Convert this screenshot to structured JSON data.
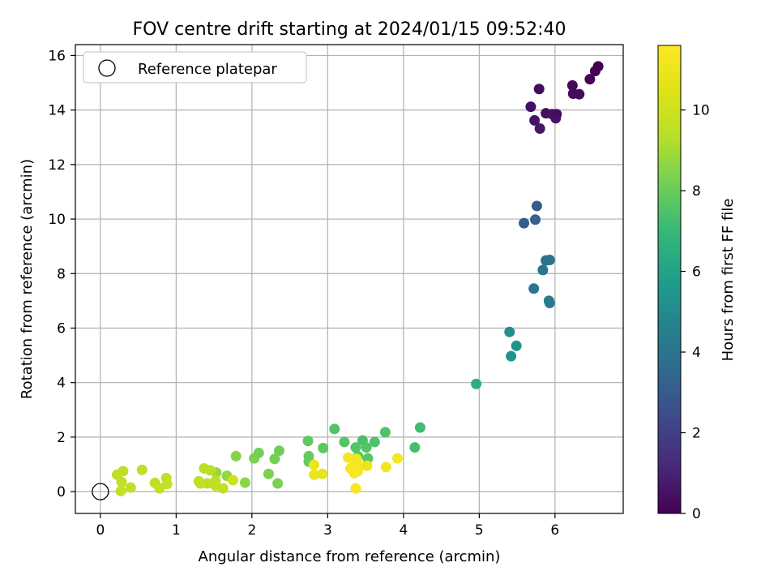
{
  "chart_data": {
    "type": "scatter",
    "title": "FOV centre drift starting at 2024/01/15 09:52:40",
    "xlabel": "Angular distance from reference (arcmin)",
    "ylabel": "Rotation from reference (arcmin)",
    "xlim": [
      -0.33,
      6.9
    ],
    "ylim": [
      -0.8,
      16.4
    ],
    "x_ticks": [
      0,
      1,
      2,
      3,
      4,
      5,
      6
    ],
    "y_ticks": [
      0,
      2,
      4,
      6,
      8,
      10,
      12,
      14,
      16
    ],
    "grid": true,
    "legend": {
      "placement": "top-left",
      "entries": [
        "Reference platepar"
      ]
    },
    "reference": {
      "name": "Reference platepar",
      "x": 0,
      "y": 0,
      "marker": "open-circle"
    },
    "colorbar": {
      "label": "Hours from first FF file",
      "colormap": "viridis",
      "min": 0,
      "max": 11.6,
      "ticks": [
        0,
        2,
        4,
        6,
        8,
        10
      ]
    },
    "points": [
      {
        "x": 5.79,
        "y": 14.77,
        "c": 0.3
      },
      {
        "x": 5.68,
        "y": 14.12,
        "c": 0.4
      },
      {
        "x": 5.73,
        "y": 13.62,
        "c": 0.5
      },
      {
        "x": 5.8,
        "y": 13.32,
        "c": 0.6
      },
      {
        "x": 5.88,
        "y": 13.88,
        "c": 0.4
      },
      {
        "x": 5.96,
        "y": 13.85,
        "c": 0.5
      },
      {
        "x": 6.01,
        "y": 13.7,
        "c": 0.6
      },
      {
        "x": 6.02,
        "y": 13.85,
        "c": 0.4
      },
      {
        "x": 6.23,
        "y": 14.9,
        "c": 0.2
      },
      {
        "x": 6.24,
        "y": 14.6,
        "c": 0.3
      },
      {
        "x": 6.32,
        "y": 14.58,
        "c": 0.3
      },
      {
        "x": 6.46,
        "y": 15.13,
        "c": 0.1
      },
      {
        "x": 6.53,
        "y": 15.43,
        "c": 0.1
      },
      {
        "x": 6.57,
        "y": 15.6,
        "c": 0.0
      },
      {
        "x": 5.76,
        "y": 10.48,
        "c": 3.0
      },
      {
        "x": 5.59,
        "y": 9.85,
        "c": 3.1
      },
      {
        "x": 5.74,
        "y": 9.98,
        "c": 3.2
      },
      {
        "x": 5.88,
        "y": 8.48,
        "c": 3.8
      },
      {
        "x": 5.93,
        "y": 8.5,
        "c": 3.9
      },
      {
        "x": 5.84,
        "y": 8.13,
        "c": 4.0
      },
      {
        "x": 5.72,
        "y": 7.45,
        "c": 4.1
      },
      {
        "x": 5.92,
        "y": 7.0,
        "c": 4.3
      },
      {
        "x": 5.93,
        "y": 6.92,
        "c": 4.3
      },
      {
        "x": 5.4,
        "y": 5.86,
        "c": 5.2
      },
      {
        "x": 5.49,
        "y": 5.35,
        "c": 5.3
      },
      {
        "x": 5.42,
        "y": 4.97,
        "c": 5.4
      },
      {
        "x": 4.96,
        "y": 3.95,
        "c": 6.6
      },
      {
        "x": 4.22,
        "y": 2.35,
        "c": 7.2
      },
      {
        "x": 4.15,
        "y": 1.62,
        "c": 7.3
      },
      {
        "x": 3.76,
        "y": 2.18,
        "c": 7.5
      },
      {
        "x": 3.62,
        "y": 1.82,
        "c": 7.5
      },
      {
        "x": 3.46,
        "y": 1.88,
        "c": 7.4
      },
      {
        "x": 3.51,
        "y": 1.62,
        "c": 7.6
      },
      {
        "x": 3.37,
        "y": 1.62,
        "c": 7.6
      },
      {
        "x": 3.53,
        "y": 1.22,
        "c": 7.7
      },
      {
        "x": 3.4,
        "y": 1.3,
        "c": 7.7
      },
      {
        "x": 3.22,
        "y": 1.82,
        "c": 7.6
      },
      {
        "x": 3.09,
        "y": 2.3,
        "c": 7.6
      },
      {
        "x": 2.94,
        "y": 1.6,
        "c": 7.8
      },
      {
        "x": 2.74,
        "y": 1.86,
        "c": 7.8
      },
      {
        "x": 2.75,
        "y": 1.3,
        "c": 7.9
      },
      {
        "x": 2.75,
        "y": 1.1,
        "c": 7.9
      },
      {
        "x": 2.36,
        "y": 1.5,
        "c": 8.1
      },
      {
        "x": 2.3,
        "y": 1.2,
        "c": 8.2
      },
      {
        "x": 2.22,
        "y": 0.65,
        "c": 8.3
      },
      {
        "x": 2.34,
        "y": 0.3,
        "c": 8.3
      },
      {
        "x": 2.09,
        "y": 1.42,
        "c": 8.2
      },
      {
        "x": 2.03,
        "y": 1.22,
        "c": 8.3
      },
      {
        "x": 1.79,
        "y": 1.3,
        "c": 8.5
      },
      {
        "x": 1.91,
        "y": 0.33,
        "c": 8.6
      },
      {
        "x": 1.67,
        "y": 0.58,
        "c": 8.7
      },
      {
        "x": 1.53,
        "y": 0.7,
        "c": 8.8
      },
      {
        "x": 1.37,
        "y": 0.85,
        "c": 9.4
      },
      {
        "x": 1.45,
        "y": 0.78,
        "c": 9.5
      },
      {
        "x": 1.52,
        "y": 0.4,
        "c": 9.5
      },
      {
        "x": 1.52,
        "y": 0.22,
        "c": 9.6
      },
      {
        "x": 1.62,
        "y": 0.12,
        "c": 9.6
      },
      {
        "x": 1.41,
        "y": 0.3,
        "c": 9.4
      },
      {
        "x": 1.3,
        "y": 0.38,
        "c": 9.5
      },
      {
        "x": 1.32,
        "y": 0.3,
        "c": 9.6
      },
      {
        "x": 1.75,
        "y": 0.42,
        "c": 10.0
      },
      {
        "x": 0.87,
        "y": 0.5,
        "c": 9.6
      },
      {
        "x": 0.88,
        "y": 0.28,
        "c": 9.7
      },
      {
        "x": 0.72,
        "y": 0.32,
        "c": 9.5
      },
      {
        "x": 0.78,
        "y": 0.12,
        "c": 9.7
      },
      {
        "x": 0.55,
        "y": 0.8,
        "c": 9.6
      },
      {
        "x": 0.4,
        "y": 0.15,
        "c": 9.6
      },
      {
        "x": 0.3,
        "y": 0.75,
        "c": 9.5
      },
      {
        "x": 0.22,
        "y": 0.62,
        "c": 9.6
      },
      {
        "x": 0.28,
        "y": 0.35,
        "c": 9.6
      },
      {
        "x": 0.27,
        "y": 0.02,
        "c": 9.7
      },
      {
        "x": 2.82,
        "y": 0.98,
        "c": 11.0
      },
      {
        "x": 2.82,
        "y": 0.62,
        "c": 11.0
      },
      {
        "x": 2.93,
        "y": 0.65,
        "c": 10.8
      },
      {
        "x": 3.27,
        "y": 1.25,
        "c": 11.4
      },
      {
        "x": 3.3,
        "y": 0.85,
        "c": 11.5
      },
      {
        "x": 3.35,
        "y": 1.0,
        "c": 11.5
      },
      {
        "x": 3.4,
        "y": 0.75,
        "c": 11.5
      },
      {
        "x": 3.33,
        "y": 0.8,
        "c": 11.4
      },
      {
        "x": 3.38,
        "y": 1.2,
        "c": 11.3
      },
      {
        "x": 3.43,
        "y": 0.95,
        "c": 11.4
      },
      {
        "x": 3.35,
        "y": 0.68,
        "c": 11.5
      },
      {
        "x": 3.52,
        "y": 0.95,
        "c": 11.0
      },
      {
        "x": 3.37,
        "y": 0.12,
        "c": 11.4
      },
      {
        "x": 3.77,
        "y": 0.9,
        "c": 11.2
      },
      {
        "x": 3.92,
        "y": 1.22,
        "c": 11.3
      }
    ]
  }
}
